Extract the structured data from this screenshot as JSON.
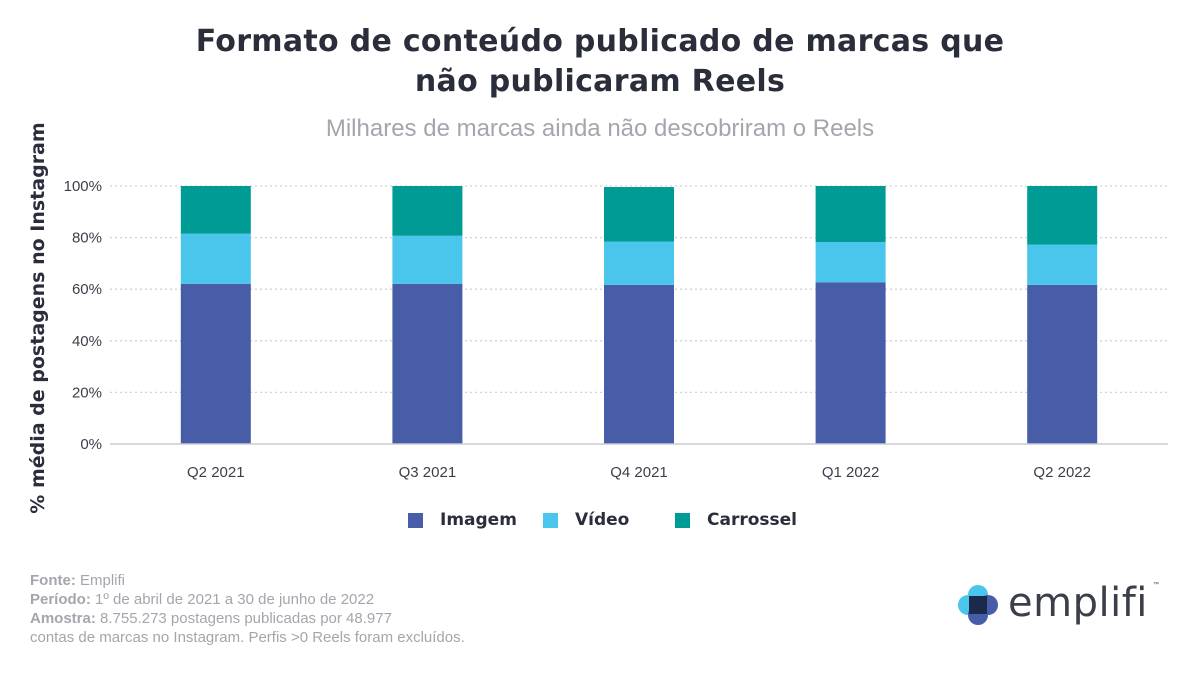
{
  "title_line1": "Formato de conteúdo publicado de marcas que",
  "title_line2": "não publicaram Reels",
  "subtitle": "Milhares de marcas ainda não descobriram o Reels",
  "footer": {
    "fonte_label": "Fonte:",
    "fonte_value": "Emplifi",
    "periodo_label": "Período:",
    "periodo_value": "1º de abril de 2021 a 30 de junho de 2022",
    "amostra_label": "Amostra:",
    "amostra_value": "8.755.273 postagens publicadas por 48.977",
    "amostra_line2": "contas de marcas no Instagram. Perfis >0 Reels foram excluídos."
  },
  "logo": {
    "text": "emplifi",
    "tm": "™"
  },
  "chart_data": {
    "type": "bar",
    "stacked": true,
    "ylabel": "% média de postagens no Instagram",
    "ylim": [
      0,
      100
    ],
    "yticks": [
      "0%",
      "20%",
      "40%",
      "60%",
      "80%",
      "100%"
    ],
    "ytick_values": [
      0,
      20,
      40,
      60,
      80,
      100
    ],
    "grid": true,
    "legend_position": "bottom",
    "categories": [
      "Q2 2021",
      "Q3 2021",
      "Q4 2021",
      "Q1 2022",
      "Q2 2022"
    ],
    "series": [
      {
        "name": "Imagem",
        "color": "#475da8",
        "values": [
          62.1,
          62.1,
          61.7,
          62.7,
          61.7
        ]
      },
      {
        "name": "Vídeo",
        "color": "#4ac5ec",
        "values": [
          19.4,
          18.6,
          16.7,
          15.6,
          15.6
        ]
      },
      {
        "name": "Carrossel",
        "color": "#009b95",
        "values": [
          18.5,
          19.3,
          21.2,
          21.7,
          22.7
        ]
      }
    ]
  }
}
